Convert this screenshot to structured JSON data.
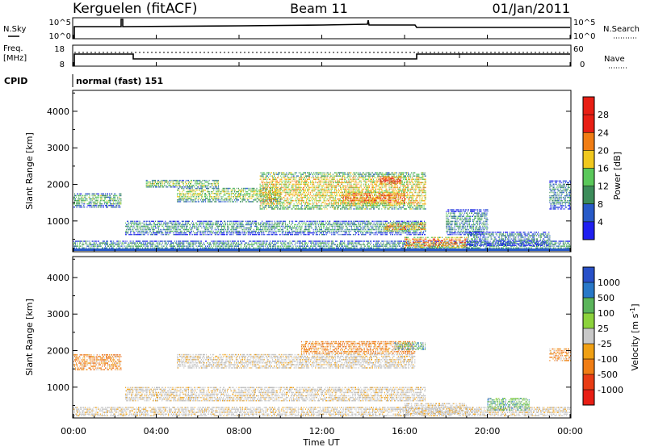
{
  "header": {
    "station": "Kerguelen (fitACF)",
    "beam": "Beam 11",
    "date": "01/Jan/2011"
  },
  "noise_panel": {
    "left_label": "N.Sky",
    "left_ticks": [
      "10^5",
      "10^0"
    ],
    "right_ticks": [
      "10^5",
      "10^0"
    ],
    "right_label": "N.Search"
  },
  "freq_panel": {
    "left_label_1": "Freq.",
    "left_label_2": "[MHz]",
    "left_ticks": [
      "18",
      "8"
    ],
    "right_ticks": [
      "60",
      "0"
    ],
    "right_label": "Nave"
  },
  "cpid": {
    "label": "CPID",
    "value": "normal (fast) 151"
  },
  "x_axis": {
    "label": "Time UT",
    "ticks": [
      "00:00",
      "04:00",
      "08:00",
      "12:00",
      "16:00",
      "20:00",
      "00:00"
    ]
  },
  "chart_data": [
    {
      "type": "heatmap",
      "quantity": "Power",
      "colorbar_label": "Power [dB]",
      "colorbar_ticks": [
        "4",
        "8",
        "12",
        "16",
        "20",
        "24",
        "28"
      ],
      "colorbar_range": [
        0,
        32
      ],
      "colors": [
        "#1f1ff0",
        "#285ac8",
        "#3c8c5a",
        "#5ac85a",
        "#f0c81e",
        "#f07d14",
        "#e81e14",
        "#e81e14"
      ],
      "xlabel": "Time UT",
      "ylabel": "Slant Range [km]",
      "y_ticks": [
        "1000",
        "2000",
        "3000",
        "4000"
      ],
      "xlim_hours": [
        0,
        24
      ],
      "ylim_km": [
        180,
        4550
      ],
      "echo_regions": [
        {
          "t_start": 0.0,
          "t_end": 24.0,
          "r_min": 190,
          "r_max": 420,
          "level": 10
        },
        {
          "t_start": 0.0,
          "t_end": 2.3,
          "r_min": 1350,
          "r_max": 1750,
          "level": 12
        },
        {
          "t_start": 2.5,
          "t_end": 17.0,
          "r_min": 600,
          "r_max": 1000,
          "level": 10
        },
        {
          "t_start": 3.5,
          "t_end": 7.0,
          "r_min": 1900,
          "r_max": 2100,
          "level": 14
        },
        {
          "t_start": 5.0,
          "t_end": 10.0,
          "r_min": 1500,
          "r_max": 1900,
          "level": 15
        },
        {
          "t_start": 9.0,
          "t_end": 17.0,
          "r_min": 1300,
          "r_max": 2300,
          "level": 18
        },
        {
          "t_start": 13.0,
          "t_end": 16.0,
          "r_min": 1400,
          "r_max": 1800,
          "level": 22
        },
        {
          "t_start": 14.8,
          "t_end": 15.8,
          "r_min": 2000,
          "r_max": 2200,
          "level": 28
        },
        {
          "t_start": 15.0,
          "t_end": 17.0,
          "r_min": 700,
          "r_max": 950,
          "level": 20
        },
        {
          "t_start": 16.0,
          "t_end": 19.0,
          "r_min": 250,
          "r_max": 550,
          "level": 22
        },
        {
          "t_start": 18.0,
          "t_end": 20.0,
          "r_min": 600,
          "r_max": 1300,
          "level": 9
        },
        {
          "t_start": 19.0,
          "t_end": 23.0,
          "r_min": 300,
          "r_max": 700,
          "level": 8
        },
        {
          "t_start": 23.0,
          "t_end": 24.0,
          "r_min": 1300,
          "r_max": 2100,
          "level": 9
        }
      ]
    },
    {
      "type": "heatmap",
      "quantity": "Velocity",
      "colorbar_label": "Velocity [m s^-1]",
      "colorbar_ticks": [
        "1000",
        "500",
        "100",
        "25",
        "-25",
        "-100",
        "-500",
        "-1000"
      ],
      "colors": [
        "#2850c8",
        "#2878c8",
        "#5ab45a",
        "#8cd23c",
        "#c8c8c8",
        "#f0a014",
        "#f07d14",
        "#e83c14",
        "#e81e14"
      ],
      "xlabel": "Time UT",
      "ylabel": "Slant Range [km]",
      "y_ticks": [
        "1000",
        "2000",
        "3000",
        "4000"
      ],
      "xlim_hours": [
        0,
        24
      ],
      "ylim_km": [
        180,
        4550
      ],
      "echo_regions": [
        {
          "t_start": 0.0,
          "t_end": 24.0,
          "r_min": 190,
          "r_max": 420,
          "cls": "gray"
        },
        {
          "t_start": 0.0,
          "t_end": 2.3,
          "r_min": 1450,
          "r_max": 1900,
          "cls": "orange"
        },
        {
          "t_start": 2.5,
          "t_end": 17.0,
          "r_min": 600,
          "r_max": 1000,
          "cls": "gray"
        },
        {
          "t_start": 5.0,
          "t_end": 16.5,
          "r_min": 1500,
          "r_max": 1900,
          "cls": "gray"
        },
        {
          "t_start": 11.0,
          "t_end": 16.5,
          "r_min": 1900,
          "r_max": 2250,
          "cls": "orange"
        },
        {
          "t_start": 15.5,
          "t_end": 17.0,
          "r_min": 2000,
          "r_max": 2200,
          "cls": "green"
        },
        {
          "t_start": 16.0,
          "t_end": 19.0,
          "r_min": 250,
          "r_max": 550,
          "cls": "gray"
        },
        {
          "t_start": 20.0,
          "t_end": 22.0,
          "r_min": 350,
          "r_max": 700,
          "cls": "green"
        },
        {
          "t_start": 23.0,
          "t_end": 24.0,
          "r_min": 1700,
          "r_max": 2050,
          "cls": "orange"
        }
      ]
    }
  ]
}
